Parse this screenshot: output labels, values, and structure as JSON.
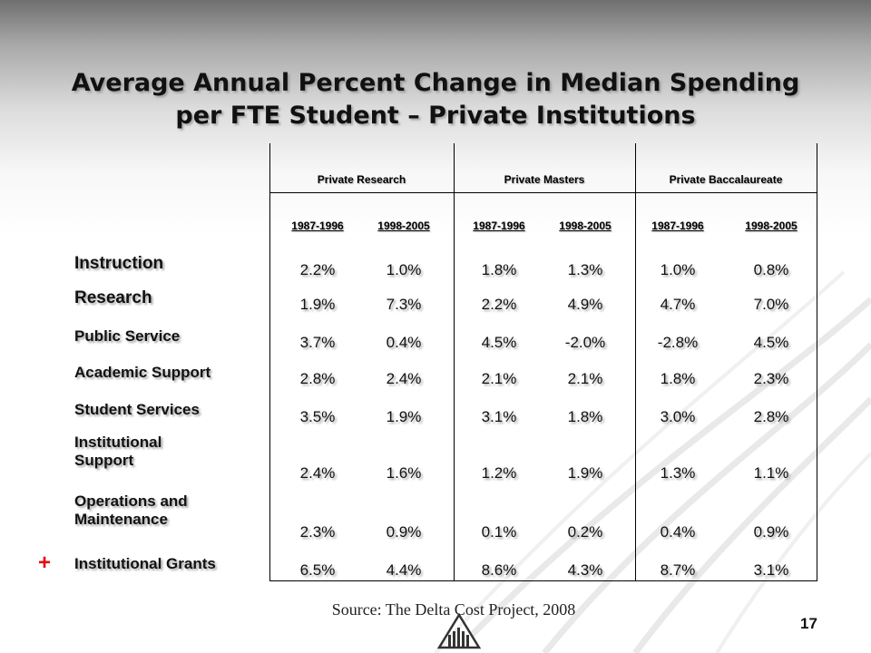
{
  "title": {
    "line1": "Average Annual Percent Change in Median Spending",
    "line2": "per FTE Student – Private Institutions"
  },
  "table": {
    "groups": [
      "Private Research",
      "Private Masters",
      "Private Baccalaureate"
    ],
    "years": [
      "1987-1996",
      "1998-2005",
      "1987-1996",
      "1998-2005",
      "1987-1996",
      "1998-2005"
    ],
    "rows": [
      {
        "label": "Instruction",
        "values": [
          "2.2%",
          "1.0%",
          "1.8%",
          "1.3%",
          "1.0%",
          "0.8%"
        ]
      },
      {
        "label": "Research",
        "values": [
          "1.9%",
          "7.3%",
          "2.2%",
          "4.9%",
          "4.7%",
          "7.0%"
        ]
      },
      {
        "label": "Public Service",
        "values": [
          "3.7%",
          "0.4%",
          "4.5%",
          "-2.0%",
          "-2.8%",
          "4.5%"
        ]
      },
      {
        "label": "Academic Support",
        "values": [
          "2.8%",
          "2.4%",
          "2.1%",
          "2.1%",
          "1.8%",
          "2.3%"
        ]
      },
      {
        "label": "Student Services",
        "values": [
          "3.5%",
          "1.9%",
          "3.1%",
          "1.8%",
          "3.0%",
          "2.8%"
        ]
      },
      {
        "label": "Institutional Support",
        "values": [
          "2.4%",
          "1.6%",
          "1.2%",
          "1.9%",
          "1.3%",
          "1.1%"
        ]
      },
      {
        "label": "Operations and Maintenance",
        "values": [
          "2.3%",
          "0.9%",
          "0.1%",
          "0.2%",
          "0.4%",
          "0.9%"
        ]
      },
      {
        "label": "Institutional Grants",
        "values": [
          "6.5%",
          "4.4%",
          "8.6%",
          "4.3%",
          "8.7%",
          "3.1%"
        ]
      }
    ]
  },
  "marker": "+",
  "source": "Source: The Delta Cost Project, 2008",
  "page_number": "17",
  "colors": {
    "accent_plus": "#e01010"
  }
}
